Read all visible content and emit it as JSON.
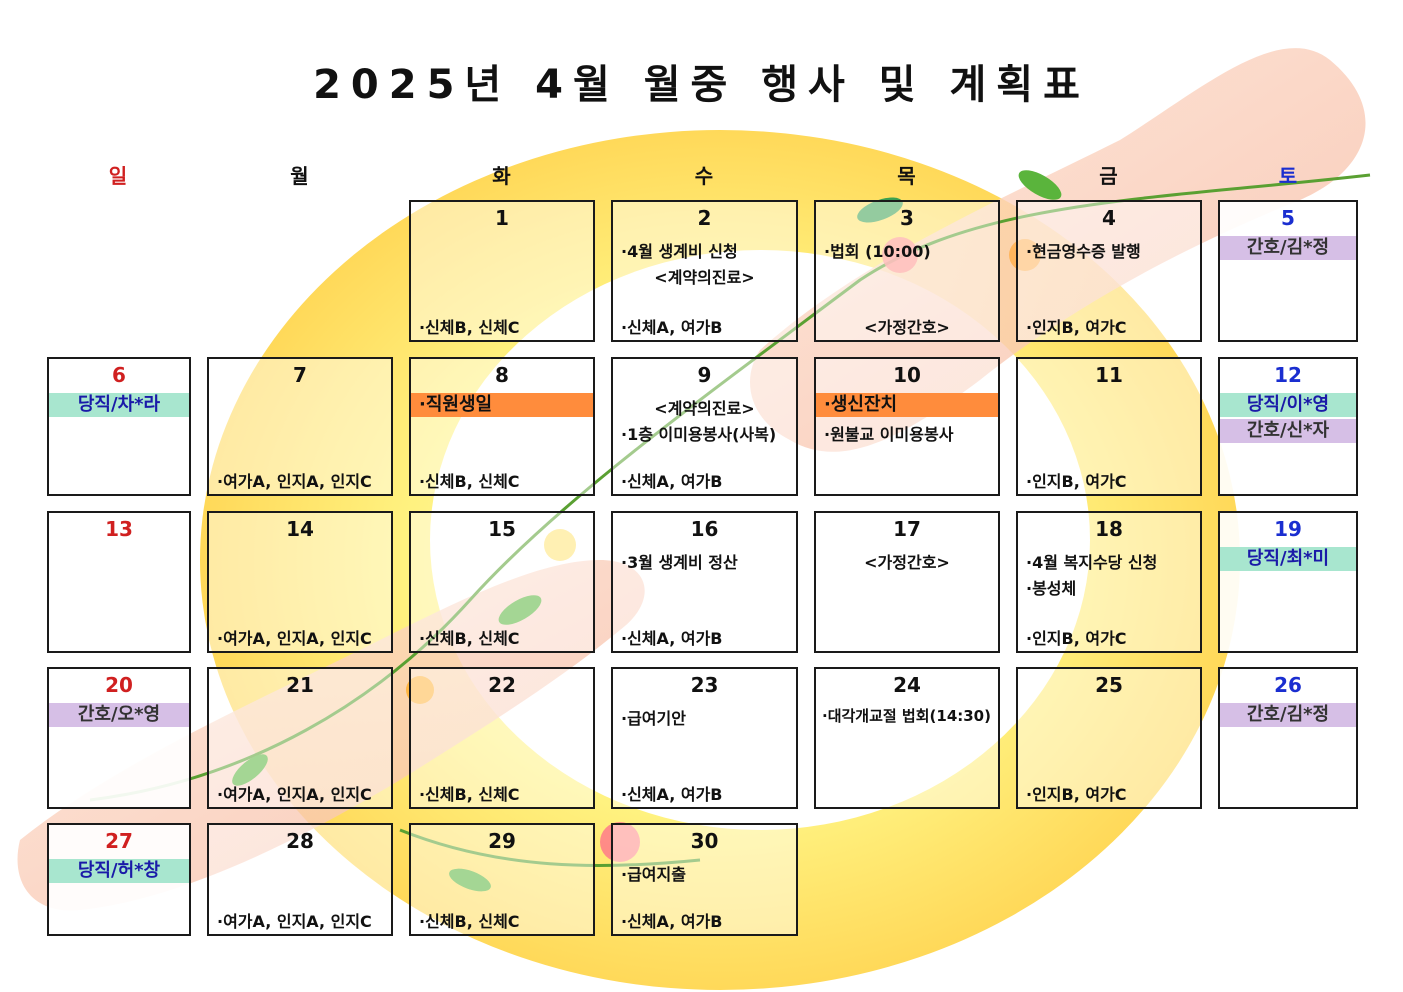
{
  "title": "2025년 4월 월중 행사 및 계획표",
  "weekdays": [
    "일",
    "월",
    "화",
    "수",
    "목",
    "금",
    "토"
  ],
  "colors": {
    "sunday": "#d02020",
    "saturday": "#1a2ed0",
    "duty_band": "#a8e6cf",
    "nurse_band": "#d6bfe6",
    "highlight_band": "#ff8c3c"
  },
  "days": {
    "d1": {
      "num": "1",
      "bottom": "·신체B, 신체C"
    },
    "d2": {
      "num": "2",
      "ev1": "·4월 생계비 신청",
      "ev2": "<계약의진료>",
      "bottom": "·신체A, 여가B"
    },
    "d3": {
      "num": "3",
      "ev1": "·법회 (10:00)",
      "bottom": "<가정간호>"
    },
    "d4": {
      "num": "4",
      "ev1": "·현금영수증 발행",
      "bottom": "·인지B, 여가C"
    },
    "d5": {
      "num": "5",
      "band1": "간호/김*정"
    },
    "d6": {
      "num": "6",
      "band1": "당직/차*라"
    },
    "d7": {
      "num": "7",
      "bottom": "·여가A, 인지A, 인지C"
    },
    "d8": {
      "num": "8",
      "band1": "·직원생일",
      "bottom": "·신체B, 신체C"
    },
    "d9": {
      "num": "9",
      "ev1": "<계약의진료>",
      "ev2": "·1층 이미용봉사(사복)",
      "bottom": "·신체A, 여가B"
    },
    "d10": {
      "num": "10",
      "band1": "·생신잔치",
      "ev2": "·원불교 이미용봉사"
    },
    "d11": {
      "num": "11",
      "bottom": "·인지B, 여가C"
    },
    "d12": {
      "num": "12",
      "band1": "당직/이*영",
      "band2": "간호/신*자"
    },
    "d13": {
      "num": "13"
    },
    "d14": {
      "num": "14",
      "bottom": "·여가A, 인지A, 인지C"
    },
    "d15": {
      "num": "15",
      "bottom": "·신체B, 신체C"
    },
    "d16": {
      "num": "16",
      "ev1": "·3월 생계비 정산",
      "bottom": "·신체A, 여가B"
    },
    "d17": {
      "num": "17",
      "ev1": "<가정간호>"
    },
    "d18": {
      "num": "18",
      "ev1": "·4월 복지수당 신청",
      "ev2": "·봉성체",
      "bottom": "·인지B, 여가C"
    },
    "d19": {
      "num": "19",
      "band1": "당직/최*미"
    },
    "d20": {
      "num": "20",
      "band1": "간호/오*영"
    },
    "d21": {
      "num": "21",
      "bottom": "·여가A, 인지A, 인지C"
    },
    "d22": {
      "num": "22",
      "bottom": "·신체B, 신체C"
    },
    "d23": {
      "num": "23",
      "ev1": "·급여기안",
      "bottom": "·신체A, 여가B"
    },
    "d24": {
      "num": "24",
      "ev1": "·대각개교절 법회(14:30)"
    },
    "d25": {
      "num": "25",
      "bottom": "·인지B, 여가C"
    },
    "d26": {
      "num": "26",
      "band1": "간호/김*정"
    },
    "d27": {
      "num": "27",
      "band1": "당직/허*창"
    },
    "d28": {
      "num": "28",
      "bottom": "·여가A, 인지A, 인지C"
    },
    "d29": {
      "num": "29",
      "bottom": "·신체B, 신체C"
    },
    "d30": {
      "num": "30",
      "ev1": "·급여지출",
      "bottom": "·신체A, 여가B"
    }
  }
}
